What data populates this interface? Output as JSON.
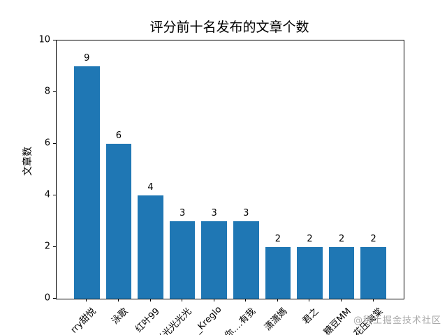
{
  "chart_data": {
    "type": "bar",
    "title": "评分前十名发布的文章个数",
    "xlabel": "",
    "ylabel": "文章数",
    "categories": [
      "rry甜悦",
      "泳歌",
      "红叶99",
      "光光光光光",
      "_Kreglo",
      "你....有我",
      "潇潇媽",
      "君之",
      "糖豆MM",
      "花压海棠"
    ],
    "values": [
      9,
      6,
      4,
      3,
      3,
      3,
      2,
      2,
      2,
      2
    ],
    "value_labels_shown": true,
    "ylim": [
      0,
      10
    ],
    "yticks": [
      0,
      2,
      4,
      6,
      8,
      10
    ],
    "x_tick_rotation_deg": 45,
    "grid": "off",
    "legend": "none",
    "bar_color": "#1f77b4",
    "axis_color": "#000000",
    "background_color": "#ffffff"
  },
  "watermark": {
    "text": "@稀土掘金技术社区",
    "color": "#aaaaaa"
  }
}
